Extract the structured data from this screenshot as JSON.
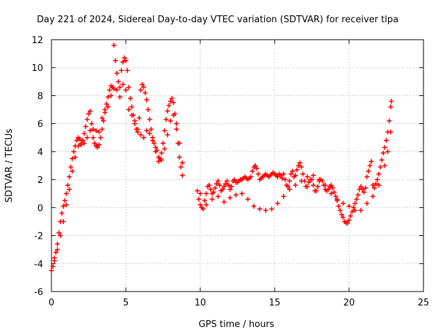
{
  "chart_data": {
    "type": "scatter",
    "title": "Day 221 of 2024, Sidereal Day-to-day VTEC variation (SDTVAR) for receiver tlpa",
    "xlabel": "GPS time / hours",
    "ylabel": "SDTVAR / TECUs",
    "xlim": [
      0,
      25
    ],
    "ylim": [
      -6,
      12
    ],
    "xticks": [
      "0",
      "5",
      "10",
      "15",
      "20",
      "25"
    ],
    "yticks": [
      "-6",
      "-4",
      "-2",
      "0",
      "2",
      "4",
      "6",
      "8",
      "10",
      "12"
    ],
    "grid": true,
    "marker": "+",
    "colors": {
      "series": "#ff0000",
      "grid": "#a0a0a0",
      "axis": "#000000"
    },
    "series": [
      {
        "name": "SDTVAR",
        "points": [
          [
            0.0,
            -4.5
          ],
          [
            0.1,
            -4.2
          ],
          [
            0.2,
            -3.8
          ],
          [
            0.3,
            -3.2
          ],
          [
            0.4,
            -2.6
          ],
          [
            0.5,
            -1.8
          ],
          [
            0.6,
            -1.0
          ],
          [
            0.7,
            -0.4
          ],
          [
            0.8,
            0.1
          ],
          [
            0.9,
            0.5
          ],
          [
            1.0,
            1.0
          ],
          [
            1.1,
            1.6
          ],
          [
            1.2,
            2.2
          ],
          [
            1.3,
            2.9
          ],
          [
            1.4,
            3.5
          ],
          [
            1.5,
            4.0
          ],
          [
            1.6,
            4.4
          ],
          [
            1.7,
            4.8
          ],
          [
            1.8,
            5.0
          ],
          [
            1.9,
            4.9
          ],
          [
            2.0,
            4.6
          ],
          [
            2.1,
            4.8
          ],
          [
            2.2,
            5.3
          ],
          [
            2.3,
            5.8
          ],
          [
            2.4,
            6.3
          ],
          [
            2.5,
            6.7
          ],
          [
            2.6,
            6.9
          ],
          [
            2.7,
            6.0
          ],
          [
            2.8,
            5.0
          ],
          [
            2.9,
            4.6
          ],
          [
            3.0,
            4.4
          ],
          [
            3.1,
            4.3
          ],
          [
            3.2,
            4.5
          ],
          [
            3.3,
            5.0
          ],
          [
            3.4,
            5.6
          ],
          [
            3.5,
            6.2
          ],
          [
            3.6,
            6.8
          ],
          [
            3.7,
            7.4
          ],
          [
            3.8,
            7.9
          ],
          [
            3.9,
            8.4
          ],
          [
            4.0,
            8.7
          ],
          [
            4.1,
            8.6
          ],
          [
            4.2,
            11.6
          ],
          [
            4.3,
            10.5
          ],
          [
            4.4,
            9.6
          ],
          [
            4.5,
            9.0
          ],
          [
            4.6,
            8.6
          ],
          [
            4.7,
            9.8
          ],
          [
            4.8,
            10.4
          ],
          [
            4.9,
            10.7
          ],
          [
            5.0,
            10.5
          ],
          [
            5.1,
            9.8
          ],
          [
            5.2,
            8.6
          ],
          [
            5.3,
            7.8
          ],
          [
            5.4,
            7.2
          ],
          [
            5.5,
            6.6
          ],
          [
            5.6,
            6.0
          ],
          [
            5.7,
            5.6
          ],
          [
            5.8,
            5.6
          ],
          [
            5.9,
            6.4
          ],
          [
            6.0,
            8.4
          ],
          [
            6.1,
            8.8
          ],
          [
            6.2,
            8.6
          ],
          [
            6.3,
            8.2
          ],
          [
            6.4,
            7.7
          ],
          [
            6.5,
            7.0
          ],
          [
            6.6,
            6.3
          ],
          [
            6.7,
            5.6
          ],
          [
            6.8,
            5.0
          ],
          [
            6.9,
            4.6
          ],
          [
            7.0,
            4.3
          ],
          [
            7.1,
            4.1
          ],
          [
            7.2,
            3.6
          ],
          [
            7.3,
            3.5
          ],
          [
            7.4,
            3.9
          ],
          [
            7.5,
            4.6
          ],
          [
            7.6,
            5.5
          ],
          [
            7.7,
            6.3
          ],
          [
            7.8,
            6.9
          ],
          [
            7.9,
            7.3
          ],
          [
            8.0,
            7.6
          ],
          [
            8.1,
            7.8
          ],
          [
            8.2,
            7.5
          ],
          [
            8.3,
            6.7
          ],
          [
            8.4,
            5.6
          ],
          [
            8.5,
            4.6
          ],
          [
            8.6,
            3.6
          ],
          [
            8.7,
            2.9
          ],
          [
            8.8,
            2.3
          ],
          [
            9.8,
            1.2
          ],
          [
            9.9,
            0.6
          ],
          [
            10.0,
            0.2
          ],
          [
            10.1,
            0.0
          ],
          [
            10.2,
            -0.1
          ],
          [
            10.3,
            0.5
          ],
          [
            10.4,
            1.0
          ],
          [
            10.5,
            1.5
          ],
          [
            10.6,
            1.6
          ],
          [
            10.7,
            1.3
          ],
          [
            10.8,
            1.0
          ],
          [
            10.9,
            1.1
          ],
          [
            11.0,
            1.4
          ],
          [
            11.1,
            1.7
          ],
          [
            11.2,
            1.9
          ],
          [
            11.3,
            1.6
          ],
          [
            11.4,
            1.2
          ],
          [
            11.5,
            1.3
          ],
          [
            11.6,
            1.5
          ],
          [
            11.7,
            1.7
          ],
          [
            11.8,
            1.9
          ],
          [
            11.9,
            1.6
          ],
          [
            12.0,
            1.3
          ],
          [
            12.1,
            1.5
          ],
          [
            12.2,
            1.9
          ],
          [
            12.3,
            2.0
          ],
          [
            12.4,
            1.8
          ],
          [
            12.5,
            1.8
          ],
          [
            12.6,
            1.9
          ],
          [
            12.7,
            2.0
          ],
          [
            12.8,
            2.0
          ],
          [
            12.9,
            2.1
          ],
          [
            13.0,
            2.2
          ],
          [
            13.1,
            2.1
          ],
          [
            13.2,
            2.0
          ],
          [
            13.3,
            2.1
          ],
          [
            13.4,
            2.2
          ],
          [
            13.5,
            2.6
          ],
          [
            13.6,
            2.9
          ],
          [
            13.7,
            3.0
          ],
          [
            13.8,
            2.8
          ],
          [
            13.9,
            2.4
          ],
          [
            14.0,
            2.0
          ],
          [
            14.1,
            2.1
          ],
          [
            14.2,
            2.2
          ],
          [
            14.3,
            2.3
          ],
          [
            14.4,
            2.4
          ],
          [
            14.5,
            2.3
          ],
          [
            14.6,
            2.2
          ],
          [
            14.7,
            2.3
          ],
          [
            14.8,
            2.4
          ],
          [
            14.9,
            2.5
          ],
          [
            15.0,
            2.4
          ],
          [
            15.1,
            2.3
          ],
          [
            15.2,
            2.2
          ],
          [
            15.3,
            2.4
          ],
          [
            15.4,
            2.3
          ],
          [
            15.5,
            2.1
          ],
          [
            15.6,
            2.4
          ],
          [
            15.7,
            2.0
          ],
          [
            15.8,
            1.6
          ],
          [
            15.9,
            1.5
          ],
          [
            16.0,
            1.9
          ],
          [
            16.1,
            2.4
          ],
          [
            16.2,
            2.6
          ],
          [
            16.3,
            2.2
          ],
          [
            16.4,
            2.3
          ],
          [
            16.5,
            2.7
          ],
          [
            16.6,
            3.0
          ],
          [
            16.7,
            3.2
          ],
          [
            16.8,
            2.9
          ],
          [
            16.9,
            2.4
          ],
          [
            17.0,
            1.9
          ],
          [
            17.1,
            1.5
          ],
          [
            17.2,
            1.5
          ],
          [
            17.3,
            1.8
          ],
          [
            17.4,
            2.0
          ],
          [
            17.5,
            2.0
          ],
          [
            17.6,
            1.6
          ],
          [
            17.7,
            1.2
          ],
          [
            17.8,
            1.2
          ],
          [
            17.9,
            1.5
          ],
          [
            18.0,
            1.9
          ],
          [
            18.1,
            2.0
          ],
          [
            18.2,
            1.9
          ],
          [
            18.3,
            1.6
          ],
          [
            18.4,
            1.3
          ],
          [
            18.5,
            1.2
          ],
          [
            18.6,
            1.3
          ],
          [
            18.7,
            1.5
          ],
          [
            18.8,
            1.6
          ],
          [
            18.9,
            1.4
          ],
          [
            19.0,
            1.1
          ],
          [
            19.1,
            0.8
          ],
          [
            19.2,
            0.5
          ],
          [
            19.3,
            0.1
          ],
          [
            19.4,
            -0.2
          ],
          [
            19.5,
            -0.5
          ],
          [
            19.6,
            -0.7
          ],
          [
            19.7,
            -1.0
          ],
          [
            19.8,
            -1.1
          ],
          [
            19.9,
            -1.1
          ],
          [
            20.0,
            -0.9
          ],
          [
            20.1,
            -0.6
          ],
          [
            20.2,
            -0.3
          ],
          [
            20.3,
            0.0
          ],
          [
            20.4,
            0.3
          ],
          [
            20.5,
            0.6
          ],
          [
            20.6,
            0.9
          ],
          [
            20.7,
            1.3
          ],
          [
            20.8,
            1.5
          ],
          [
            20.9,
            1.3
          ],
          [
            21.0,
            1.1
          ],
          [
            21.1,
            1.4
          ],
          [
            21.2,
            2.2
          ],
          [
            21.3,
            2.6
          ],
          [
            21.4,
            3.0
          ],
          [
            21.5,
            3.3
          ],
          [
            21.6,
            1.6
          ],
          [
            21.7,
            1.4
          ],
          [
            21.8,
            1.7
          ],
          [
            21.9,
            2.0
          ],
          [
            22.0,
            2.4
          ],
          [
            22.1,
            2.9
          ],
          [
            22.2,
            3.4
          ],
          [
            22.3,
            3.9
          ],
          [
            22.4,
            4.3
          ],
          [
            22.5,
            4.8
          ],
          [
            22.6,
            5.4
          ],
          [
            22.7,
            6.2
          ],
          [
            22.8,
            7.2
          ],
          [
            22.85,
            7.6
          ],
          [
            0.2,
            -3.6
          ],
          [
            0.4,
            -3.0
          ],
          [
            0.6,
            -2.0
          ],
          [
            0.8,
            -1.0
          ],
          [
            1.0,
            0.2
          ],
          [
            1.2,
            1.3
          ],
          [
            1.4,
            2.6
          ],
          [
            1.6,
            3.6
          ],
          [
            1.8,
            4.4
          ],
          [
            2.0,
            4.5
          ],
          [
            2.2,
            4.6
          ],
          [
            2.4,
            5.0
          ],
          [
            2.6,
            5.5
          ],
          [
            2.8,
            5.6
          ],
          [
            3.0,
            5.5
          ],
          [
            3.2,
            5.4
          ],
          [
            3.4,
            6.4
          ],
          [
            3.6,
            7.0
          ],
          [
            3.8,
            7.2
          ],
          [
            4.0,
            8.0
          ],
          [
            4.2,
            8.5
          ],
          [
            4.4,
            8.4
          ],
          [
            4.6,
            7.9
          ],
          [
            4.8,
            8.8
          ],
          [
            5.0,
            8.4
          ],
          [
            5.2,
            7.0
          ],
          [
            5.4,
            6.6
          ],
          [
            5.6,
            6.2
          ],
          [
            5.8,
            5.4
          ],
          [
            6.0,
            5.2
          ],
          [
            6.2,
            5.0
          ],
          [
            6.4,
            5.5
          ],
          [
            6.6,
            5.3
          ],
          [
            6.8,
            4.8
          ],
          [
            7.0,
            4.0
          ],
          [
            7.2,
            3.3
          ],
          [
            7.4,
            3.4
          ],
          [
            7.6,
            4.2
          ],
          [
            7.8,
            5.2
          ],
          [
            8.0,
            6.2
          ],
          [
            8.2,
            6.6
          ],
          [
            8.4,
            6.0
          ],
          [
            8.6,
            4.6
          ],
          [
            8.8,
            3.2
          ],
          [
            10.0,
            1.0
          ],
          [
            10.4,
            0.2
          ],
          [
            10.8,
            0.6
          ],
          [
            11.2,
            0.8
          ],
          [
            11.6,
            0.4
          ],
          [
            12.0,
            0.7
          ],
          [
            12.4,
            0.9
          ],
          [
            12.8,
            1.0
          ],
          [
            13.2,
            0.6
          ],
          [
            13.6,
            0.1
          ],
          [
            14.0,
            -0.1
          ],
          [
            14.4,
            -0.2
          ],
          [
            14.8,
            -0.1
          ],
          [
            15.2,
            0.3
          ],
          [
            15.6,
            0.8
          ],
          [
            16.0,
            1.3
          ],
          [
            16.4,
            1.6
          ],
          [
            16.8,
            1.9
          ],
          [
            17.2,
            2.2
          ],
          [
            17.6,
            2.3
          ],
          [
            18.0,
            2.0
          ],
          [
            18.4,
            1.6
          ],
          [
            18.8,
            1.0
          ],
          [
            19.2,
            0.6
          ],
          [
            19.6,
            0.3
          ],
          [
            20.0,
            0.1
          ],
          [
            20.4,
            -0.2
          ],
          [
            20.8,
            -0.2
          ],
          [
            21.2,
            0.3
          ],
          [
            21.6,
            0.8
          ],
          [
            22.0,
            1.6
          ],
          [
            22.4,
            3.0
          ],
          [
            22.6,
            4.0
          ],
          [
            22.8,
            5.4
          ]
        ]
      }
    ]
  }
}
